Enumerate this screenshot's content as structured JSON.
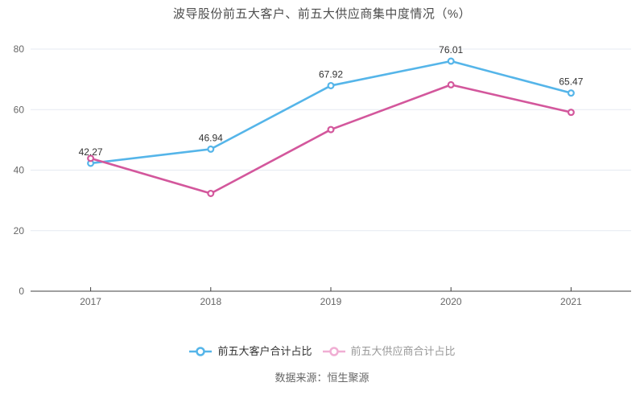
{
  "title": {
    "text": "波导股份前五大客户、前五大供应商集中度情况（%）",
    "color": "#4d4d4d"
  },
  "legend": {
    "items": [
      {
        "label": "前五大客户合计占比",
        "icon": "line-circle-marker",
        "icon_color": "#55b5e9",
        "label_color": "#333333"
      },
      {
        "label": "前五大供应商合计占比",
        "icon": "line-circle-marker",
        "icon_color": "#f0aed3",
        "label_color": "#999999"
      }
    ]
  },
  "footer": {
    "text": "数据来源：恒生聚源",
    "color": "#666666"
  },
  "colors": {
    "gridline": "#e6eaf2",
    "axis_line": "#404040",
    "tick_label": "#666666",
    "data_label": "#333333"
  },
  "chart_data": {
    "type": "line",
    "title": "波导股份前五大客户、前五大供应商集中度情况（%）",
    "categories": [
      "2017",
      "2018",
      "2019",
      "2020",
      "2021"
    ],
    "series": [
      {
        "name": "前五大客户合计占比",
        "color": "#55b5e9",
        "values": [
          42.27,
          46.94,
          67.92,
          76.01,
          65.47
        ],
        "data_labels": [
          "42.27",
          "46.94",
          "67.92",
          "76.01",
          "65.47"
        ]
      },
      {
        "name": "前五大供应商合计占比",
        "color": "#d3579c",
        "values": [
          43.9,
          32.3,
          53.4,
          68.2,
          59.1
        ],
        "data_labels": []
      }
    ],
    "xlabel": "",
    "ylabel": "",
    "ylim": [
      0,
      80
    ],
    "yticks": [
      0,
      20,
      40,
      60,
      80
    ],
    "grid": true,
    "legend_position": "bottom",
    "marker": "open-circle"
  }
}
